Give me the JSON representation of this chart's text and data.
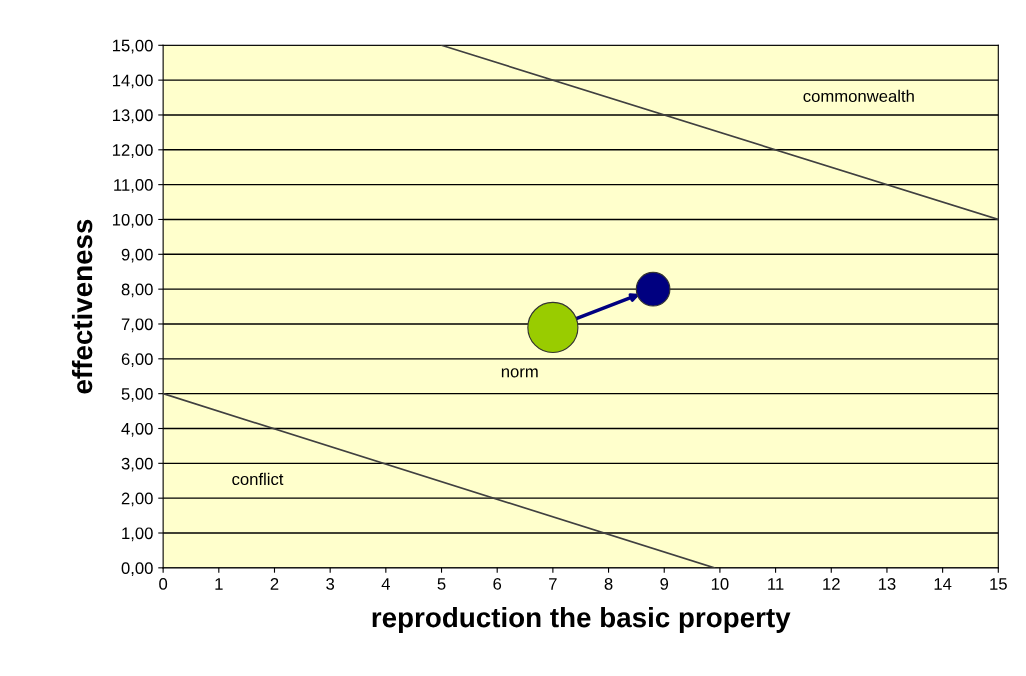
{
  "chart_data": {
    "type": "line",
    "xlabel": "reproduction the basic property",
    "ylabel": "effectiveness",
    "series": [
      {
        "color": "#404040",
        "x": [
          5,
          15
        ],
        "values": [
          15,
          10
        ]
      },
      {
        "color": "#404040",
        "x": [
          0,
          9.9
        ],
        "values": [
          5,
          0
        ]
      },
      {
        "type": "bubble",
        "x": [
          7,
          8.8
        ],
        "values": [
          6.9,
          8.0
        ],
        "sizes": [
          1,
          0.45
        ],
        "colors": [
          "#99cc00",
          "#000080"
        ]
      }
    ],
    "annotations": [
      "commonwealth",
      "norm",
      "conflict"
    ],
    "xlim": [
      0,
      15
    ],
    "xticks": [
      0,
      1,
      2,
      3,
      4,
      5,
      6,
      7,
      8,
      9,
      10,
      11,
      12,
      13,
      14,
      15
    ],
    "ylim": [
      0,
      15
    ],
    "yticks": [
      {
        "value": 0,
        "label": "0,00"
      },
      {
        "value": 1,
        "label": "1,00"
      },
      {
        "value": 2,
        "label": "2,00"
      },
      {
        "value": 3,
        "label": "3,00"
      },
      {
        "value": 4,
        "label": "4,00"
      },
      {
        "value": 5,
        "label": "5,00"
      },
      {
        "value": 6,
        "label": "6,00"
      },
      {
        "value": 7,
        "label": "7,00"
      },
      {
        "value": 8,
        "label": "8,00"
      },
      {
        "value": 9,
        "label": "9,00"
      },
      {
        "value": 10,
        "label": "10,00"
      },
      {
        "value": 11,
        "label": "11,00"
      },
      {
        "value": 12,
        "label": "12,00"
      },
      {
        "value": 13,
        "label": "13,00"
      },
      {
        "value": 14,
        "label": "14,00"
      },
      {
        "value": 15,
        "label": "15,00"
      }
    ],
    "grid": "y",
    "legend": false
  }
}
